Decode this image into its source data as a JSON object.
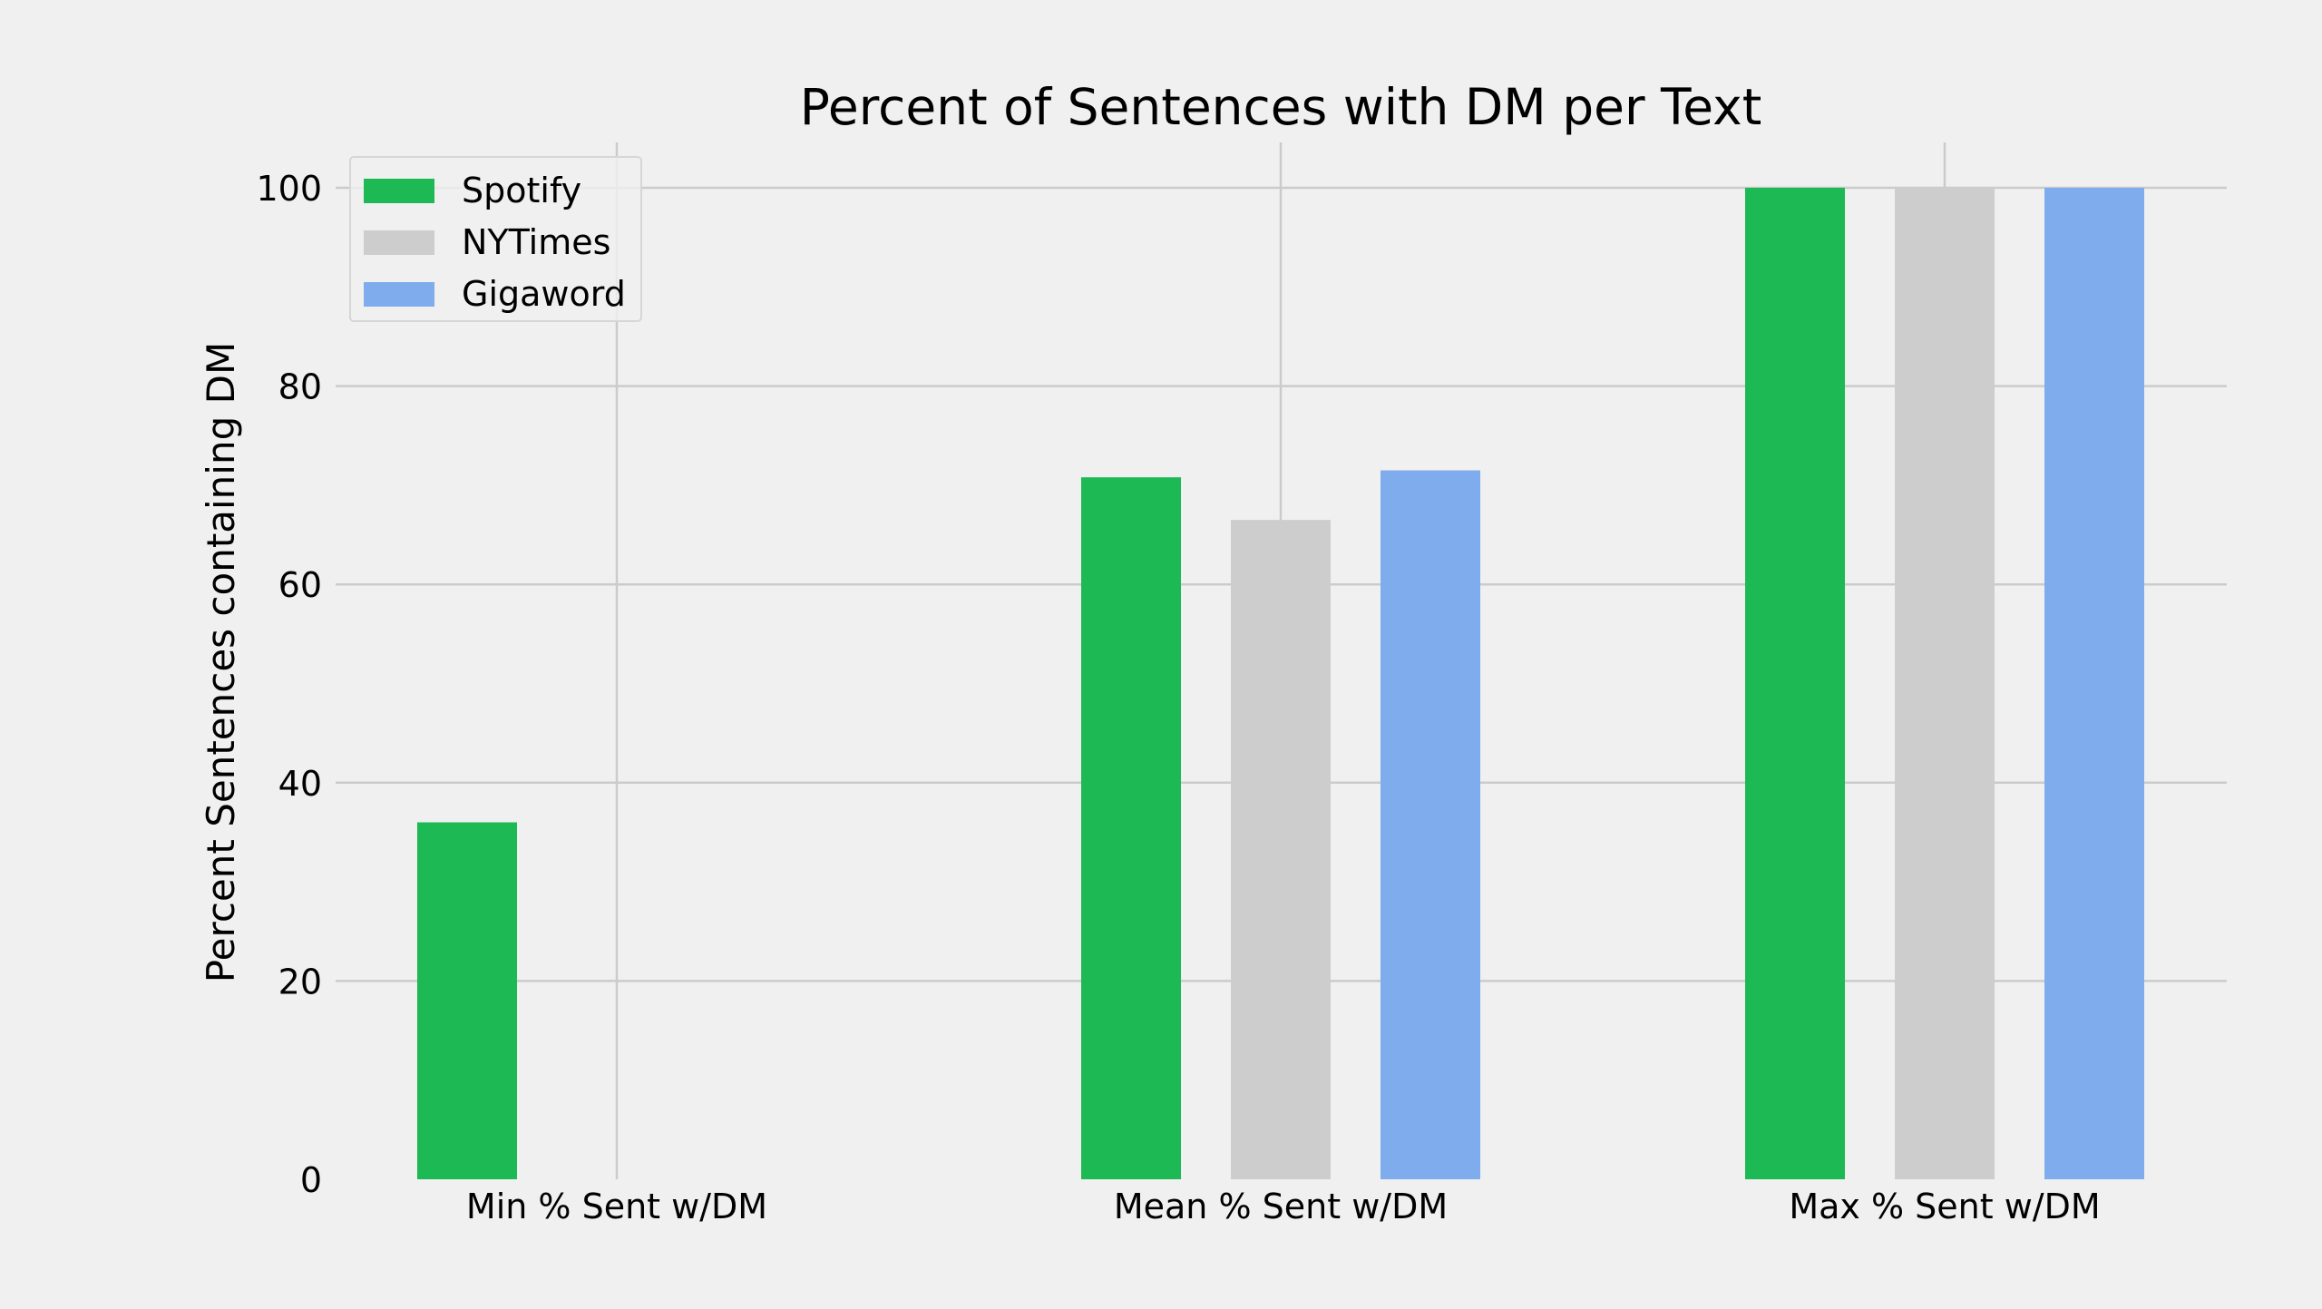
{
  "chart_data": {
    "type": "bar",
    "title": "Percent of Sentences with DM per Text",
    "xlabel": "",
    "ylabel": "Percent Sentences containing DM",
    "categories": [
      "Min % Sent w/DM",
      "Mean % Sent w/DM",
      "Max % Sent w/DM"
    ],
    "series": [
      {
        "name": "Spotify",
        "color": "#1db954",
        "values": [
          36,
          70.8,
          100
        ]
      },
      {
        "name": "NYTimes",
        "color": "#cdcdcd",
        "values": [
          0,
          66.5,
          100
        ]
      },
      {
        "name": "Gigaword",
        "color": "#7eacec",
        "values": [
          0,
          71.5,
          100
        ]
      }
    ],
    "ylim": [
      0,
      105
    ],
    "yticks": [
      "0",
      "20",
      "40",
      "60",
      "80",
      "100"
    ],
    "grid": true,
    "legend_position": "top-left",
    "background": "#f0f0f0",
    "grid_color": "#cbcbcb"
  }
}
